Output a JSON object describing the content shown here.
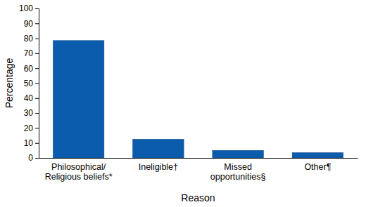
{
  "chart_data": {
    "type": "bar",
    "x_label": "Reason",
    "y_label": "Percentage",
    "categories": [
      "Philosophical/\nReligious beliefs*",
      "Ineligible†",
      "Missed\nopportunities§",
      "Other¶"
    ],
    "values": [
      78.5,
      12.5,
      5,
      3.5
    ],
    "color": "#0b5cad",
    "ylim": [
      0,
      100
    ],
    "yticks": [
      0,
      10,
      20,
      30,
      40,
      50,
      60,
      70,
      80,
      90,
      100
    ],
    "grid": false
  }
}
